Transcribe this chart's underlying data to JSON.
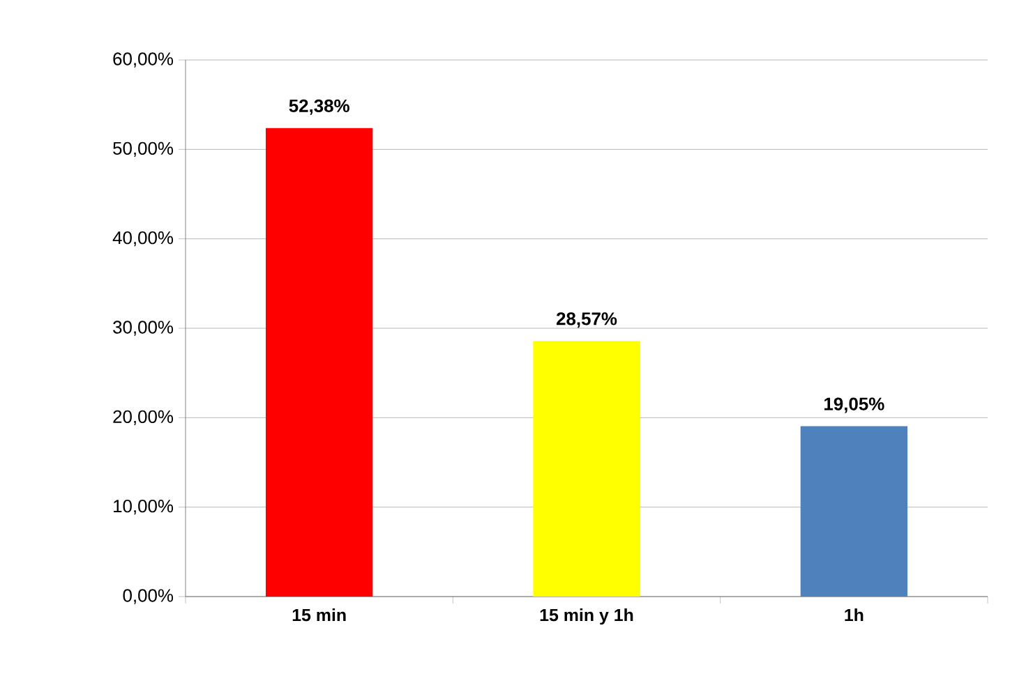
{
  "chart_data": {
    "type": "bar",
    "categories": [
      "15 min",
      "15 min y 1h",
      "1h"
    ],
    "values": [
      52.38,
      28.57,
      19.05
    ],
    "colors": [
      "#ff0000",
      "#ffff00",
      "#4f81bd"
    ],
    "value_labels": [
      "52,38%",
      "28,57%",
      "19,05%"
    ],
    "ylim": [
      0,
      60
    ],
    "yticks": [
      {
        "value": 0,
        "label": "0,00%"
      },
      {
        "value": 10,
        "label": "10,00%"
      },
      {
        "value": 20,
        "label": "20,00%"
      },
      {
        "value": 30,
        "label": "30,00%"
      },
      {
        "value": 40,
        "label": "40,00%"
      },
      {
        "value": 50,
        "label": "50,00%"
      },
      {
        "value": 60,
        "label": "60,00%"
      }
    ],
    "grid": "y"
  }
}
